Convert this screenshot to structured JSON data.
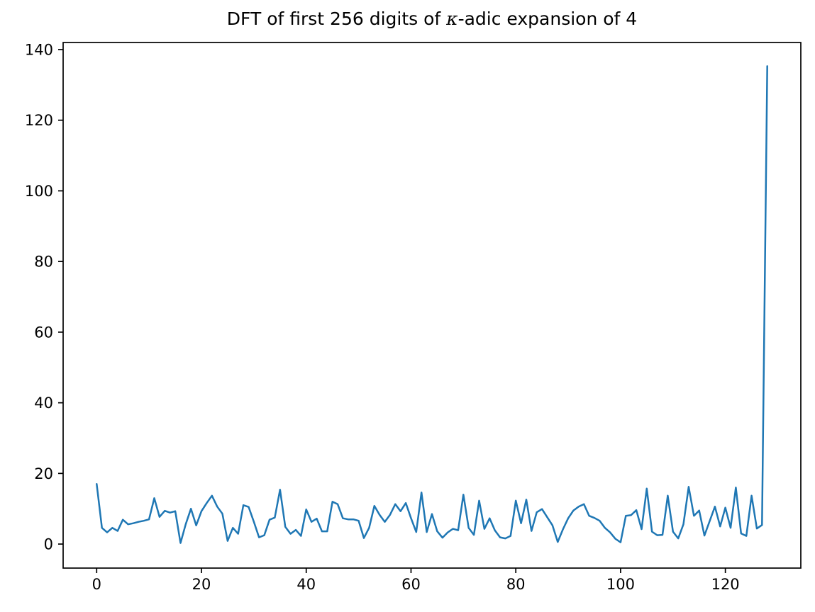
{
  "figure": {
    "title": {
      "prefix": "DFT of first 256 digits of ",
      "kappa": "κ",
      "suffix": "-adic expansion of 4"
    },
    "background_color": "#ffffff",
    "axes_color": "#000000"
  },
  "chart_data": {
    "type": "line",
    "title": "DFT of first 256 digits of κ-adic expansion of 4",
    "xlabel": "",
    "ylabel": "",
    "x_is_index": true,
    "x_start": 0,
    "x_step": 1,
    "values": [
      17.0,
      4.6,
      3.3,
      4.6,
      3.7,
      6.9,
      5.6,
      5.9,
      6.3,
      6.6,
      7.0,
      13.0,
      7.7,
      9.4,
      8.9,
      9.3,
      0.3,
      5.6,
      10.0,
      5.3,
      9.3,
      11.6,
      13.7,
      10.6,
      8.6,
      0.9,
      4.6,
      2.9,
      11.0,
      10.5,
      6.3,
      1.9,
      2.5,
      6.9,
      7.5,
      15.4,
      4.9,
      2.9,
      4.0,
      2.3,
      9.8,
      6.3,
      7.2,
      3.6,
      3.6,
      12.0,
      11.3,
      7.3,
      7.0,
      7.0,
      6.6,
      1.7,
      4.6,
      10.8,
      8.3,
      6.3,
      8.3,
      11.3,
      9.3,
      11.6,
      7.3,
      3.4,
      14.6,
      3.4,
      8.5,
      3.6,
      1.8,
      3.3,
      4.3,
      3.9,
      14.0,
      4.6,
      2.6,
      12.3,
      4.3,
      7.3,
      3.9,
      1.9,
      1.6,
      2.3,
      12.3,
      5.9,
      12.6,
      3.7,
      9.0,
      9.9,
      7.6,
      5.3,
      0.6,
      4.2,
      7.3,
      9.5,
      10.6,
      11.3,
      8.0,
      7.4,
      6.6,
      4.6,
      3.3,
      1.5,
      0.5,
      8.0,
      8.2,
      9.6,
      4.2,
      15.7,
      3.5,
      2.5,
      2.6,
      13.7,
      3.5,
      1.6,
      5.6,
      16.2,
      8.0,
      9.5,
      2.4,
      6.5,
      10.6,
      5.0,
      10.3,
      4.6,
      16.0,
      3.0,
      2.3,
      13.7,
      4.4,
      5.4,
      135.3
    ],
    "xlim": [
      -6.4,
      134.4
    ],
    "ylim": [
      -6.8,
      142.0
    ],
    "x_ticks": [
      0,
      20,
      40,
      60,
      80,
      100,
      120
    ],
    "y_ticks": [
      0,
      20,
      40,
      60,
      80,
      100,
      120,
      140
    ],
    "line_color": "#1f77b4",
    "line_width": 2.5,
    "grid": false,
    "legend": null
  }
}
